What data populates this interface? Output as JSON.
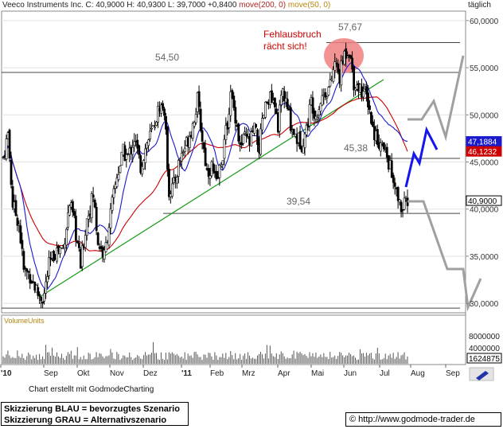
{
  "header": {
    "ticker_line": "Veeco Instruments Inc. C: 40,9000 H: 40,9300 L: 39,7000 +0,8400",
    "ma200_label": "move(200, 0)",
    "ma50_label": "move(50, 0)",
    "period": "täglich"
  },
  "footer": {
    "credit": "Chart erstellt mit GodmodeCharting",
    "legend_blue": "Skizzierung BLAU = bevorzugtes Szenario",
    "legend_grey": "Skizzierung GRAU = Alternativszenario",
    "url": "© http://www.godmode-trader.de"
  },
  "colors": {
    "price": "#000000",
    "ma50": "#1a1acc",
    "ma200": "#cc0000",
    "trendline": "#119911",
    "blue_scenario": "#1515ee",
    "grey_scenario": "#a0a0a0",
    "highlight": "#f08080",
    "annotation_red": "#cc0000"
  },
  "chart_data": {
    "type": "candlestick",
    "y_axis": {
      "ylim": [
        29000,
        61000
      ],
      "ticks": [
        30000,
        35000,
        40000,
        45000,
        50000,
        55000,
        60000
      ],
      "tick_labels": [
        "30,0000",
        "35,0000",
        "40,0000",
        "45,0000",
        "50,0000",
        "55,0000",
        "60,0000"
      ],
      "position": "right"
    },
    "x_axis": {
      "labels": [
        "'10",
        "Sep",
        "Okt",
        "Nov",
        "Dez",
        "'11",
        "Feb",
        "Mrz",
        "Apr",
        "Mai",
        "Jun",
        "Jul",
        "Aug",
        "Sep"
      ]
    },
    "value_boxes": [
      {
        "label": "47,1884",
        "value": 47188,
        "series": "ma50"
      },
      {
        "label": "46,1232",
        "value": 46123,
        "series": "ma200"
      },
      {
        "label": "40,9000",
        "value": 40900,
        "series": "close"
      }
    ],
    "horizontal_levels": [
      {
        "label": "57,67",
        "value": 57670
      },
      {
        "label": "54,50",
        "value": 54500
      },
      {
        "label": "45,38",
        "value": 45380
      },
      {
        "label": "39,54",
        "value": 39540
      },
      {
        "label": "",
        "value": 29500
      }
    ],
    "annotation": {
      "line1": "Fehlausbruch",
      "line2": "rächt sich!"
    },
    "anchors": [
      {
        "t": 0,
        "v": 45500
      },
      {
        "t": 6,
        "v": 48000
      },
      {
        "t": 12,
        "v": 40500
      },
      {
        "t": 20,
        "v": 38500
      },
      {
        "t": 26,
        "v": 33500
      },
      {
        "t": 34,
        "v": 33000
      },
      {
        "t": 44,
        "v": 31000
      },
      {
        "t": 51,
        "v": 30500
      },
      {
        "t": 58,
        "v": 34000
      },
      {
        "t": 66,
        "v": 35500
      },
      {
        "t": 76,
        "v": 36000
      },
      {
        "t": 84,
        "v": 40500
      },
      {
        "t": 90,
        "v": 38500
      },
      {
        "t": 98,
        "v": 34000
      },
      {
        "t": 106,
        "v": 39000
      },
      {
        "t": 114,
        "v": 41500
      },
      {
        "t": 120,
        "v": 36500
      },
      {
        "t": 128,
        "v": 35000
      },
      {
        "t": 136,
        "v": 39500
      },
      {
        "t": 144,
        "v": 43500
      },
      {
        "t": 152,
        "v": 46000
      },
      {
        "t": 158,
        "v": 45500
      },
      {
        "t": 166,
        "v": 47500
      },
      {
        "t": 174,
        "v": 44500
      },
      {
        "t": 182,
        "v": 47000
      },
      {
        "t": 190,
        "v": 48500
      },
      {
        "t": 198,
        "v": 51000
      },
      {
        "t": 204,
        "v": 50500
      },
      {
        "t": 210,
        "v": 42000
      },
      {
        "t": 216,
        "v": 42500
      },
      {
        "t": 224,
        "v": 45500
      },
      {
        "t": 232,
        "v": 47000
      },
      {
        "t": 240,
        "v": 49000
      },
      {
        "t": 246,
        "v": 51500
      },
      {
        "t": 252,
        "v": 47500
      },
      {
        "t": 258,
        "v": 44000
      },
      {
        "t": 264,
        "v": 44500
      },
      {
        "t": 270,
        "v": 42500
      },
      {
        "t": 276,
        "v": 45000
      },
      {
        "t": 282,
        "v": 48000
      },
      {
        "t": 288,
        "v": 52000
      },
      {
        "t": 294,
        "v": 50000
      },
      {
        "t": 300,
        "v": 46500
      },
      {
        "t": 306,
        "v": 47500
      },
      {
        "t": 312,
        "v": 47000
      },
      {
        "t": 318,
        "v": 48500
      },
      {
        "t": 324,
        "v": 46500
      },
      {
        "t": 330,
        "v": 50000
      },
      {
        "t": 336,
        "v": 52000
      },
      {
        "t": 342,
        "v": 51000
      },
      {
        "t": 348,
        "v": 49000
      },
      {
        "t": 354,
        "v": 52500
      },
      {
        "t": 360,
        "v": 50500
      },
      {
        "t": 366,
        "v": 48500
      },
      {
        "t": 372,
        "v": 47500
      },
      {
        "t": 378,
        "v": 47000
      },
      {
        "t": 384,
        "v": 48500
      },
      {
        "t": 390,
        "v": 51500
      },
      {
        "t": 396,
        "v": 50000
      },
      {
        "t": 402,
        "v": 51500
      },
      {
        "t": 408,
        "v": 52500
      },
      {
        "t": 414,
        "v": 53000
      },
      {
        "t": 420,
        "v": 55500
      },
      {
        "t": 426,
        "v": 54000
      },
      {
        "t": 432,
        "v": 56500
      },
      {
        "t": 438,
        "v": 57000
      },
      {
        "t": 444,
        "v": 53500
      },
      {
        "t": 450,
        "v": 53000
      },
      {
        "t": 456,
        "v": 52500
      },
      {
        "t": 462,
        "v": 51500
      },
      {
        "t": 468,
        "v": 48500
      },
      {
        "t": 474,
        "v": 47500
      },
      {
        "t": 480,
        "v": 46500
      },
      {
        "t": 486,
        "v": 45500
      },
      {
        "t": 490,
        "v": 44500
      },
      {
        "t": 494,
        "v": 42500
      },
      {
        "t": 498,
        "v": 41500
      },
      {
        "t": 502,
        "v": 40500
      },
      {
        "t": 506,
        "v": 39900
      },
      {
        "t": 509,
        "v": 40500
      },
      {
        "t": 512,
        "v": 40900
      }
    ]
  }
}
